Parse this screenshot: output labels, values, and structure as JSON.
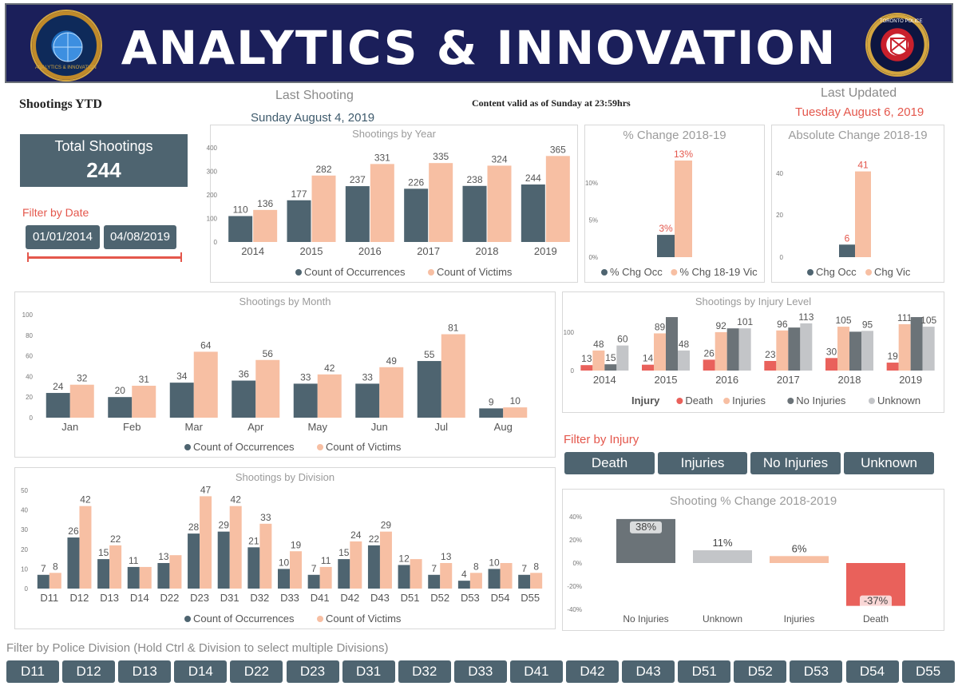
{
  "header": {
    "title": "ANALYTICS & INNOVATION",
    "left_logo": "analytics-innovation-logo",
    "left_logo_text": "ANALYTICS & INNOVATION",
    "right_logo": "toronto-police-logo",
    "right_logo_text": "TORONTO POLICE"
  },
  "page": {
    "section_title": "Shootings YTD",
    "last_shooting_label": "Last Shooting",
    "last_shooting_date": "Sunday August 4, 2019",
    "content_valid": "Content valid as of Sunday at 23:59hrs",
    "last_updated_label": "Last Updated",
    "last_updated_date": "Tuesday August 6, 2019"
  },
  "total_card": {
    "label": "Total Shootings",
    "value": "244"
  },
  "date_filter": {
    "label": "Filter by Date",
    "start": "01/01/2014",
    "end": "04/08/2019",
    "range_start_fraction": 0.0,
    "range_end_fraction": 1.0
  },
  "colors": {
    "occurrences": "#4e6470",
    "victims": "#f7bfa3",
    "death": "#e9615b",
    "injuries": "#f7bfa3",
    "no_injuries": "#6b7378",
    "unknown": "#c3c5c8",
    "accent_red": "#e4574c"
  },
  "injury_filter": {
    "label": "Filter by Injury",
    "buttons": [
      "Death",
      "Injuries",
      "No Injuries",
      "Unknown"
    ]
  },
  "division_filter": {
    "label": "Filter by Police Division (Hold Ctrl & Division to select multiple Divisions)",
    "buttons": [
      "D11",
      "D12",
      "D13",
      "D14",
      "D22",
      "D23",
      "D31",
      "D32",
      "D33",
      "D41",
      "D42",
      "D43",
      "D51",
      "D52",
      "D53",
      "D54",
      "D55"
    ]
  },
  "chart_data": [
    {
      "id": "year",
      "type": "bar",
      "title": "Shootings by Year",
      "categories": [
        "2014",
        "2015",
        "2016",
        "2017",
        "2018",
        "2019"
      ],
      "series": [
        {
          "name": "Count of Occurrences",
          "values": [
            110,
            177,
            237,
            226,
            238,
            244
          ]
        },
        {
          "name": "Count of Victims",
          "values": [
            136,
            282,
            331,
            335,
            324,
            365
          ]
        }
      ],
      "yticks": [
        "0",
        "100",
        "200",
        "300",
        "400"
      ],
      "ylim": [
        0,
        400
      ],
      "legend": "bottom"
    },
    {
      "id": "pct",
      "type": "bar",
      "title": "% Change 2018-19",
      "categories": [
        ""
      ],
      "series": [
        {
          "name": "% Chg Occ",
          "values": [
            3
          ],
          "label": "3%"
        },
        {
          "name": "% Chg 18-19 Vic",
          "values": [
            13
          ],
          "label": "13%"
        }
      ],
      "yticks": [
        "0%",
        "5%",
        "10%"
      ],
      "ylim": [
        0,
        13
      ],
      "legend": "bottom"
    },
    {
      "id": "abs",
      "type": "bar",
      "title": "Absolute Change 2018-19",
      "categories": [
        ""
      ],
      "series": [
        {
          "name": "Chg Occ",
          "values": [
            6
          ],
          "label": "6"
        },
        {
          "name": "Chg Vic",
          "values": [
            41
          ],
          "label": "41"
        }
      ],
      "yticks": [
        "0",
        "20",
        "40"
      ],
      "ylim": [
        0,
        42
      ],
      "legend": "bottom"
    },
    {
      "id": "month",
      "type": "bar",
      "title": "Shootings by Month",
      "categories": [
        "Jan",
        "Feb",
        "Mar",
        "Apr",
        "May",
        "Jun",
        "Jul",
        "Aug"
      ],
      "series": [
        {
          "name": "Count of Occurrences",
          "values": [
            24,
            20,
            34,
            36,
            33,
            33,
            55,
            9
          ]
        },
        {
          "name": "Count of Victims",
          "values": [
            32,
            31,
            64,
            56,
            42,
            49,
            81,
            10
          ]
        }
      ],
      "yticks": [
        "0",
        "20",
        "40",
        "60",
        "80",
        "100"
      ],
      "ylim": [
        0,
        100
      ],
      "legend": "bottom"
    },
    {
      "id": "injury",
      "type": "bar",
      "title": "Shootings by Injury Level",
      "categories": [
        "2014",
        "2015",
        "2016",
        "2017",
        "2018",
        "2019"
      ],
      "legend_title": "Injury",
      "series": [
        {
          "name": "Death",
          "values": [
            13,
            14,
            26,
            23,
            30,
            19
          ]
        },
        {
          "name": "Injuries",
          "values": [
            48,
            89,
            92,
            96,
            105,
            111
          ]
        },
        {
          "name": "No Injuries",
          "values": [
            15,
            128,
            101,
            103,
            93,
            128
          ]
        },
        {
          "name": "Unknown",
          "values": [
            60,
            48,
            101,
            113,
            95,
            105
          ]
        }
      ],
      "labels": [
        [
          "13",
          "48",
          "15",
          "60"
        ],
        [
          "14",
          "89",
          "",
          "48"
        ],
        [
          "26",
          "92",
          "",
          "101"
        ],
        [
          "23",
          "96",
          "",
          "113"
        ],
        [
          "30",
          "105",
          "",
          "95"
        ],
        [
          "19",
          "111",
          "",
          "105"
        ]
      ],
      "yticks": [
        "0",
        "100"
      ],
      "ylim": [
        0,
        130
      ],
      "legend": "bottom"
    },
    {
      "id": "division",
      "type": "bar",
      "title": "Shootings by Division",
      "categories": [
        "D11",
        "D12",
        "D13",
        "D14",
        "D22",
        "D23",
        "D31",
        "D32",
        "D33",
        "D41",
        "D42",
        "D43",
        "D51",
        "D52",
        "D53",
        "D54",
        "D55"
      ],
      "series": [
        {
          "name": "Count of Occurrences",
          "values": [
            7,
            26,
            15,
            11,
            13,
            28,
            29,
            21,
            10,
            7,
            15,
            22,
            12,
            7,
            4,
            10,
            7
          ]
        },
        {
          "name": "Count of Victims",
          "values": [
            8,
            42,
            22,
            11,
            17,
            47,
            42,
            33,
            19,
            11,
            24,
            29,
            15,
            13,
            8,
            13,
            8
          ]
        }
      ],
      "labels": [
        [
          "7",
          "8"
        ],
        [
          "26",
          "42"
        ],
        [
          "15",
          "22"
        ],
        [
          "11",
          ""
        ],
        [
          "13",
          ""
        ],
        [
          "28",
          "47"
        ],
        [
          "29",
          "42"
        ],
        [
          "21",
          "33"
        ],
        [
          "10",
          "19"
        ],
        [
          "7",
          "11"
        ],
        [
          "15",
          "24"
        ],
        [
          "22",
          "29"
        ],
        [
          "12",
          ""
        ],
        [
          "7",
          "13"
        ],
        [
          "4",
          "8"
        ],
        [
          "10",
          ""
        ],
        [
          "7",
          "8"
        ]
      ],
      "yticks": [
        "0",
        "10",
        "20",
        "30",
        "40",
        "50"
      ],
      "ylim": [
        0,
        50
      ],
      "legend": "bottom"
    },
    {
      "id": "pctchange",
      "type": "bar",
      "title": "Shooting % Change 2018-2019",
      "categories": [
        "No Injuries",
        "Unknown",
        "Injuries",
        "Death"
      ],
      "values": [
        38,
        11,
        6,
        -37
      ],
      "labels": [
        "38%",
        "11%",
        "6%",
        "-37%"
      ],
      "yticks": [
        "40%",
        "20%",
        "0%",
        "-20%",
        "-40%"
      ],
      "ylim": [
        -40,
        40
      ]
    }
  ]
}
